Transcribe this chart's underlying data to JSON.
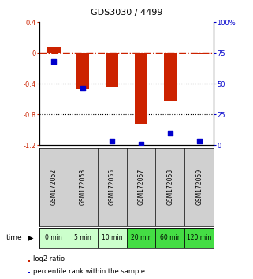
{
  "title": "GDS3030 / 4499",
  "samples": [
    "GSM172052",
    "GSM172053",
    "GSM172055",
    "GSM172057",
    "GSM172058",
    "GSM172059"
  ],
  "time_labels": [
    "0 min",
    "5 min",
    "10 min",
    "20 min",
    "60 min",
    "120 min"
  ],
  "log2_ratio": [
    0.07,
    -0.47,
    -0.44,
    -0.92,
    -0.62,
    -0.02
  ],
  "percentile_rank": [
    68,
    46,
    3,
    1,
    10,
    3
  ],
  "ylim_left": [
    -1.2,
    0.4
  ],
  "ylim_right": [
    0,
    100
  ],
  "bar_color": "#cc2200",
  "dot_color": "#0000cc",
  "hline_color": "#cc2200",
  "dotline_color": "#000000",
  "left_yticks": [
    0.4,
    0.0,
    -0.4,
    -0.8,
    -1.2
  ],
  "left_ytick_labels": [
    "0.4",
    "0",
    "-0.4",
    "-0.8",
    "-1.2"
  ],
  "right_yticks": [
    100,
    75,
    50,
    25,
    0
  ],
  "right_ytick_labels": [
    "100%",
    "75",
    "50",
    "25",
    "0"
  ],
  "legend_log2": "log2 ratio",
  "legend_pct": "percentile rank within the sample",
  "time_bg_colors": [
    "#ccffcc",
    "#ccffcc",
    "#ccffcc",
    "#44dd44",
    "#44dd44",
    "#44dd44"
  ],
  "sample_row_bg": "#d0d0d0",
  "bg_color": "white"
}
